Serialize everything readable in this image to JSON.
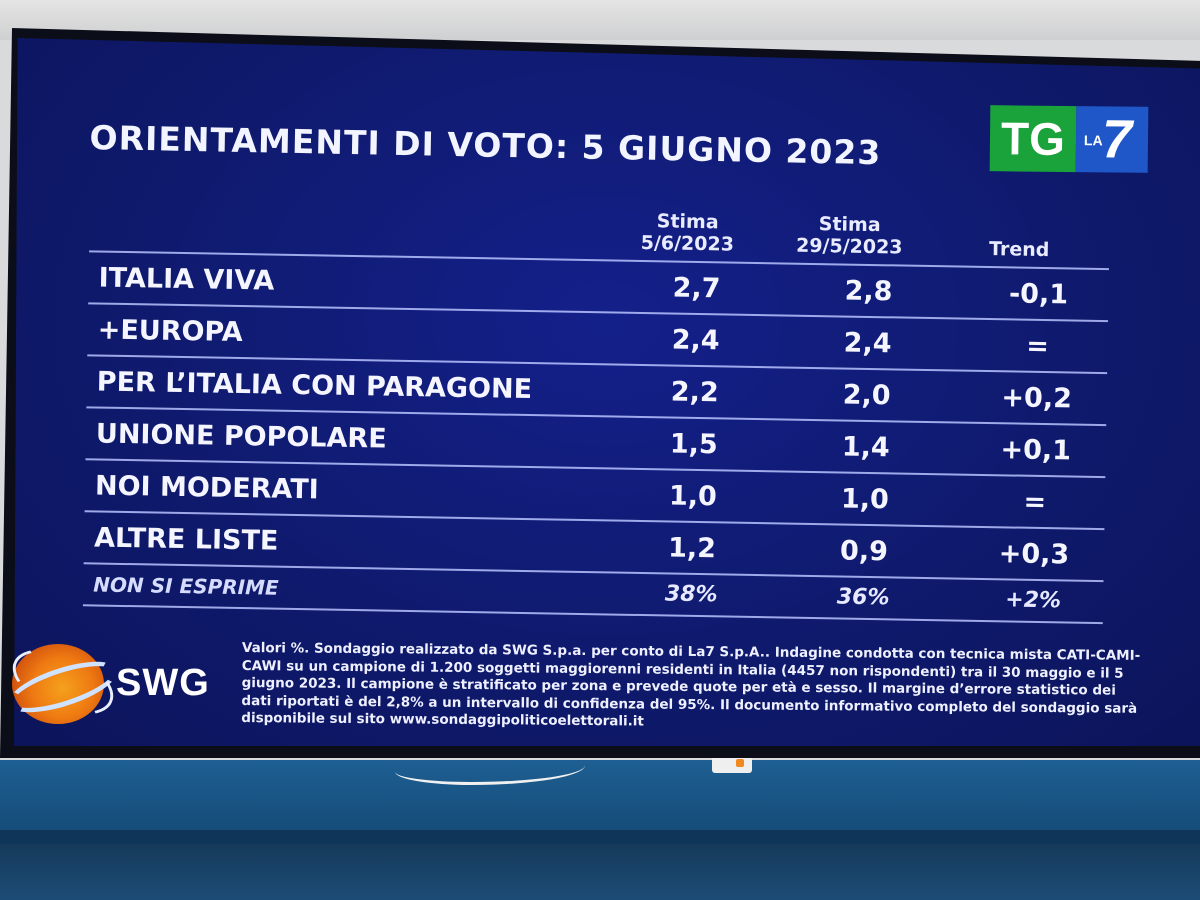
{
  "title": "ORIENTAMENTI DI VOTO: 5 GIUGNO 2023",
  "logo": {
    "tg": "TG",
    "la": "LA",
    "seven": "7"
  },
  "columns": {
    "current": [
      "Stima",
      "5/6/2023"
    ],
    "previous": [
      "Stima",
      "29/5/2023"
    ],
    "trend": "Trend"
  },
  "rows": [
    {
      "label": "ITALIA VIVA",
      "current": "2,7",
      "previous": "2,8",
      "trend": "-0,1"
    },
    {
      "label": "+EUROPA",
      "current": "2,4",
      "previous": "2,4",
      "trend": "="
    },
    {
      "label": "PER L’ITALIA CON PARAGONE",
      "current": "2,2",
      "previous": "2,0",
      "trend": "+0,2"
    },
    {
      "label": "UNIONE POPOLARE",
      "current": "1,5",
      "previous": "1,4",
      "trend": "+0,1"
    },
    {
      "label": "NOI MODERATI",
      "current": "1,0",
      "previous": "1,0",
      "trend": "="
    },
    {
      "label": "ALTRE LISTE",
      "current": "1,2",
      "previous": "0,9",
      "trend": "+0,3"
    }
  ],
  "summary_row": {
    "label": "NON SI ESPRIME",
    "current": "38%",
    "previous": "36%",
    "trend": "+2%"
  },
  "swg": {
    "name": "SWG"
  },
  "note": "Valori %. Sondaggio realizzato da SWG S.p.a. per conto di La7 S.p.A.. Indagine condotta con tecnica mista CATI-CAMI-CAWI su un campione di 1.200 soggetti maggiorenni residenti in Italia (4457 non rispondenti) tra il 30 maggio e il 5 giugno 2023. Il campione è stratificato per zona e prevede quote per età e sesso. Il margine d’errore statistico dei dati riportati è del 2,8% a un intervallo di confidenza del 95%. Il documento informativo completo del sondaggio sarà disponibile sul sito www.sondaggipoliticoelettorali.it"
}
